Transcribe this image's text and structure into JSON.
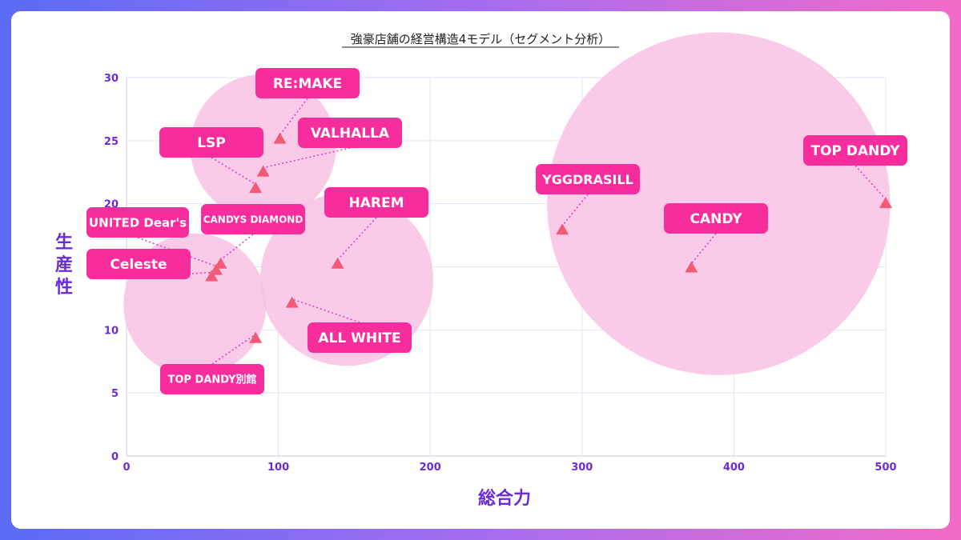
{
  "chart_data": {
    "type": "scatter",
    "title": "強豪店舗の経営構造4モデル（セグメント分析）",
    "xlabel": "総合力",
    "ylabel": "生産性",
    "xlim": [
      0,
      500
    ],
    "ylim": [
      0,
      30
    ],
    "xticks": [
      0,
      100,
      200,
      300,
      400,
      500
    ],
    "yticks": [
      0,
      5,
      10,
      15,
      20,
      25,
      30
    ],
    "grid": true,
    "segment_bubbles": [
      {
        "cx": 90,
        "cy": 24.5,
        "r_data_x": 48
      },
      {
        "cx": 45,
        "cy": 12,
        "r_data_x": 47
      },
      {
        "cx": 145,
        "cy": 14,
        "r_data_x": 57
      },
      {
        "cx": 390,
        "cy": 20,
        "r_data_x": 113
      }
    ],
    "points": [
      {
        "label": "RE:MAKE",
        "x": 101,
        "y": 25.2
      },
      {
        "label": "LSP",
        "x": 85,
        "y": 21.3
      },
      {
        "label": "VALHALLA",
        "x": 90,
        "y": 22.6
      },
      {
        "label": "HAREM",
        "x": 139,
        "y": 15.3
      },
      {
        "label": "UNITED Dear's",
        "x": 59,
        "y": 14.8
      },
      {
        "label": "CANDYS DIAMOND",
        "x": 62,
        "y": 15.3
      },
      {
        "label": "Celeste",
        "x": 56,
        "y": 14.3
      },
      {
        "label": "ALL WHITE",
        "x": 109,
        "y": 12.2
      },
      {
        "label": "TOP DANDY別館",
        "x": 85,
        "y": 9.4
      },
      {
        "label": "YGGDRASILL",
        "x": 287,
        "y": 18
      },
      {
        "label": "CANDY",
        "x": 372,
        "y": 15
      },
      {
        "label": "TOP DANDY",
        "x": 500,
        "y": 20.1
      }
    ],
    "colors": {
      "bubble": "#f9c2e4",
      "marker": "#f25a78",
      "label_bg": "#f72d9e",
      "leader": "#e040c8",
      "axis_text": "#6a2bd8",
      "grid": "#e6e0f5"
    }
  }
}
